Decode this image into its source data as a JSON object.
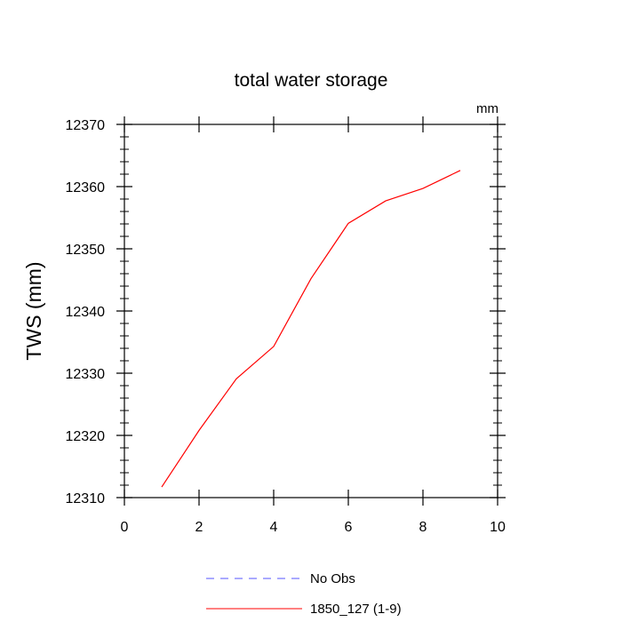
{
  "chart_data": {
    "type": "line",
    "title": "total water storage",
    "units_label": "mm",
    "ylabel": "TWS  (mm)",
    "xlabel": "",
    "xlim": [
      0,
      10
    ],
    "ylim": [
      12310,
      12370
    ],
    "x_ticks": [
      0,
      2,
      4,
      6,
      8,
      10
    ],
    "y_ticks": [
      12310,
      12320,
      12330,
      12340,
      12350,
      12360,
      12370
    ],
    "grid": false,
    "legend_position": "bottom",
    "series": [
      {
        "name": "1850_127 (1-9)",
        "color": "#ff0000",
        "dash": "solid",
        "x": [
          1,
          2,
          3,
          4,
          5,
          6,
          7,
          8,
          9
        ],
        "y": [
          12311.7,
          12320.8,
          12329.1,
          12334.3,
          12345.2,
          12354.1,
          12357.7,
          12359.7,
          12362.6
        ]
      }
    ],
    "legend": [
      {
        "label": "No Obs",
        "color": "#5555ff",
        "dash": "dashed"
      },
      {
        "label": "1850_127 (1-9)",
        "color": "#ff0000",
        "dash": "solid"
      }
    ]
  }
}
